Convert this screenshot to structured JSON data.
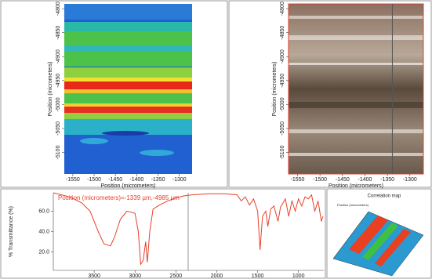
{
  "map_axes": {
    "x_label": "Position (micrometers)",
    "y_label": "Position (micrometers)",
    "xlim": [
      -1570,
      -1270
    ],
    "ylim": [
      -5145,
      -4790
    ],
    "xticks": [
      -1550,
      -1500,
      -1450,
      -1400,
      -1350,
      -1300
    ],
    "yticks": [
      -4800,
      -4850,
      -4900,
      -4950,
      -5000,
      -5050,
      -5100
    ]
  },
  "image_cursor_x": -1339,
  "spectrum": {
    "type": "line",
    "annotation": "Position (micrometers)=-1339 µm,-4985 µm",
    "y_label": "% Transmittance (%)",
    "xlim": [
      4000,
      690
    ],
    "ylim": [
      2,
      78
    ],
    "xticks": [
      3500,
      3000,
      2500,
      2000,
      1500,
      1000
    ],
    "yticks": [
      {
        "value": 20,
        "label": "20.0"
      },
      {
        "value": 40,
        "label": "40.0"
      },
      {
        "value": 60,
        "label": "60.0"
      }
    ],
    "cursor_x": 2350,
    "color": "#e8402a",
    "x": [
      4000,
      3800,
      3650,
      3550,
      3450,
      3380,
      3300,
      3250,
      3180,
      3100,
      3000,
      2960,
      2930,
      2900,
      2870,
      2850,
      2820,
      2780,
      2700,
      2600,
      2500,
      2400,
      2300,
      2100,
      1900,
      1750,
      1700,
      1650,
      1600,
      1550,
      1500,
      1470,
      1440,
      1400,
      1375,
      1340,
      1300,
      1250,
      1220,
      1160,
      1120,
      1080,
      1040,
      1000,
      960,
      920,
      880,
      840,
      800,
      760,
      720,
      700
    ],
    "y": [
      78,
      74,
      68,
      60,
      40,
      28,
      26,
      35,
      52,
      60,
      58,
      40,
      8,
      12,
      30,
      10,
      40,
      62,
      66,
      70,
      73,
      75,
      76,
      77,
      77,
      76,
      70,
      74,
      66,
      72,
      60,
      22,
      55,
      60,
      45,
      62,
      65,
      50,
      64,
      72,
      55,
      70,
      60,
      72,
      65,
      74,
      72,
      76,
      60,
      70,
      50,
      55
    ]
  },
  "correlation_map": {
    "title": "Correlation map",
    "axis_label": "Position (micrometers)"
  }
}
